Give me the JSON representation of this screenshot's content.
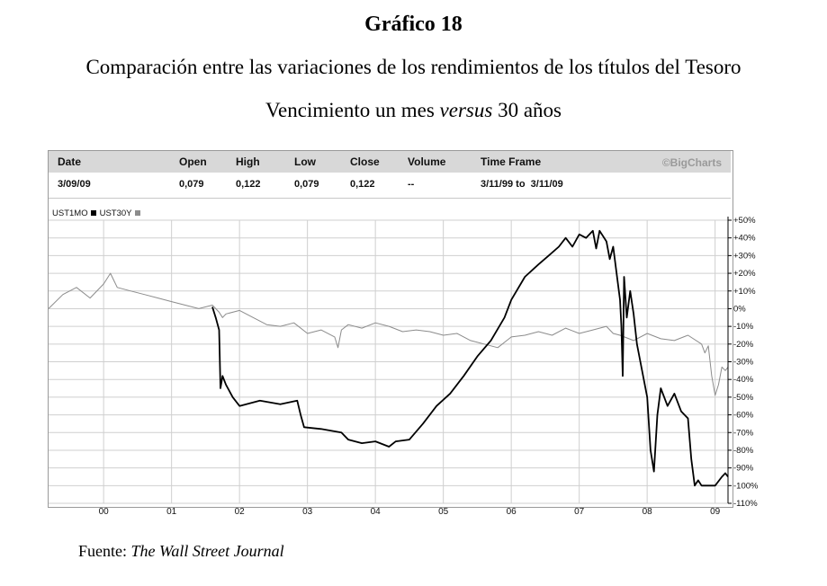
{
  "figure": {
    "number": "Gráfico 18",
    "title_line1": "Comparación entre las variaciones de los rendimientos de los títulos del Tesoro",
    "title_line2_pre": "Vencimiento un mes ",
    "title_line2_em": "versus",
    "title_line2_post": " 30 años",
    "source_label": "Fuente: ",
    "source_name": "The Wall Street Journal"
  },
  "quote": {
    "headers": [
      "Date",
      "Open",
      "High",
      "Low",
      "Close",
      "Volume",
      "Time Frame"
    ],
    "values": [
      "3/09/09",
      "0,079",
      "0,122",
      "0,079",
      "0,122",
      "--",
      "3/11/99 to  3/11/09"
    ],
    "brand": "©BigCharts"
  },
  "legend": {
    "series1": "UST1MO",
    "series2": "UST30Y"
  },
  "colors": {
    "series1": "#000000",
    "series2": "#8c8c8c",
    "grid": "#cfcfcf",
    "header_bg": "#d8d8d8"
  },
  "chart_data": {
    "type": "line",
    "title": "",
    "xlabel": "",
    "ylabel": "",
    "x_tick_labels": [
      "00",
      "01",
      "02",
      "03",
      "04",
      "05",
      "06",
      "07",
      "08",
      "09"
    ],
    "y_tick_labels": [
      "+50%",
      "+40%",
      "+30%",
      "+20%",
      "+10%",
      "0%",
      "-10%",
      "-20%",
      "-30%",
      "-40%",
      "-50%",
      "-60%",
      "-70%",
      "-80%",
      "-90%",
      "-100%",
      "-110%"
    ],
    "y_ticks": [
      50,
      40,
      30,
      20,
      10,
      0,
      -10,
      -20,
      -30,
      -40,
      -50,
      -60,
      -70,
      -80,
      -90,
      -100,
      -110
    ],
    "ylim": [
      -110,
      50
    ],
    "xlim": [
      1999.19,
      2009.19
    ],
    "x_ticks": [
      2000.0,
      2001.0,
      2002.0,
      2003.0,
      2004.0,
      2005.0,
      2006.0,
      2007.0,
      2008.0,
      2009.0
    ],
    "grid": true,
    "y_axis_side": "right",
    "series": [
      {
        "name": "UST1MO",
        "x": [
          2001.6,
          2001.65,
          2001.7,
          2001.72,
          2001.75,
          2001.8,
          2001.9,
          2002.0,
          2002.3,
          2002.6,
          2002.85,
          2002.9,
          2002.95,
          2003.2,
          2003.5,
          2003.6,
          2003.8,
          2004.0,
          2004.2,
          2004.3,
          2004.5,
          2004.7,
          2004.9,
          2005.1,
          2005.3,
          2005.5,
          2005.7,
          2005.9,
          2006.0,
          2006.2,
          2006.4,
          2006.55,
          2006.7,
          2006.8,
          2006.9,
          2007.0,
          2007.1,
          2007.2,
          2007.25,
          2007.3,
          2007.4,
          2007.45,
          2007.5,
          2007.55,
          2007.6,
          2007.62,
          2007.64,
          2007.66,
          2007.7,
          2007.75,
          2007.8,
          2007.85,
          2007.9,
          2007.95,
          2008.0,
          2008.05,
          2008.1,
          2008.15,
          2008.2,
          2008.3,
          2008.4,
          2008.5,
          2008.6,
          2008.65,
          2008.7,
          2008.75,
          2008.8,
          2008.9,
          2009.0,
          2009.1,
          2009.15,
          2009.19
        ],
        "y": [
          1,
          -5,
          -12,
          -45,
          -38,
          -43,
          -50,
          -55,
          -52,
          -54,
          -52,
          -60,
          -67,
          -68,
          -70,
          -74,
          -76,
          -75,
          -78,
          -75,
          -74,
          -65,
          -55,
          -48,
          -38,
          -27,
          -18,
          -5,
          5,
          18,
          25,
          30,
          35,
          40,
          35,
          42,
          40,
          44,
          34,
          44,
          38,
          28,
          35,
          20,
          5,
          -10,
          -38,
          18,
          -5,
          10,
          -3,
          -20,
          -30,
          -40,
          -50,
          -80,
          -92,
          -60,
          -45,
          -55,
          -48,
          -58,
          -62,
          -85,
          -100,
          -97,
          -100,
          -100,
          -100,
          -95,
          -93,
          -95
        ]
      },
      {
        "name": "UST30Y",
        "x": [
          1999.19,
          1999.4,
          1999.6,
          1999.8,
          2000.0,
          2000.1,
          2000.2,
          2000.4,
          2000.6,
          2000.8,
          2001.0,
          2001.2,
          2001.4,
          2001.6,
          2001.7,
          2001.75,
          2001.8,
          2002.0,
          2002.2,
          2002.4,
          2002.6,
          2002.8,
          2003.0,
          2003.2,
          2003.4,
          2003.45,
          2003.5,
          2003.6,
          2003.8,
          2004.0,
          2004.2,
          2004.4,
          2004.6,
          2004.8,
          2005.0,
          2005.2,
          2005.4,
          2005.6,
          2005.8,
          2006.0,
          2006.2,
          2006.4,
          2006.6,
          2006.8,
          2007.0,
          2007.2,
          2007.4,
          2007.5,
          2007.6,
          2007.8,
          2008.0,
          2008.2,
          2008.4,
          2008.6,
          2008.8,
          2008.85,
          2008.9,
          2008.95,
          2009.0,
          2009.05,
          2009.1,
          2009.15,
          2009.19
        ],
        "y": [
          0,
          8,
          12,
          6,
          14,
          20,
          12,
          10,
          8,
          6,
          4,
          2,
          0,
          2,
          -2,
          -5,
          -3,
          -1,
          -5,
          -9,
          -10,
          -8,
          -14,
          -12,
          -16,
          -22,
          -12,
          -9,
          -11,
          -8,
          -10,
          -13,
          -12,
          -13,
          -15,
          -14,
          -18,
          -20,
          -22,
          -16,
          -15,
          -13,
          -15,
          -11,
          -14,
          -12,
          -10,
          -14,
          -15,
          -18,
          -14,
          -17,
          -18,
          -15,
          -20,
          -25,
          -21,
          -38,
          -49,
          -43,
          -33,
          -35,
          -33
        ]
      }
    ]
  }
}
